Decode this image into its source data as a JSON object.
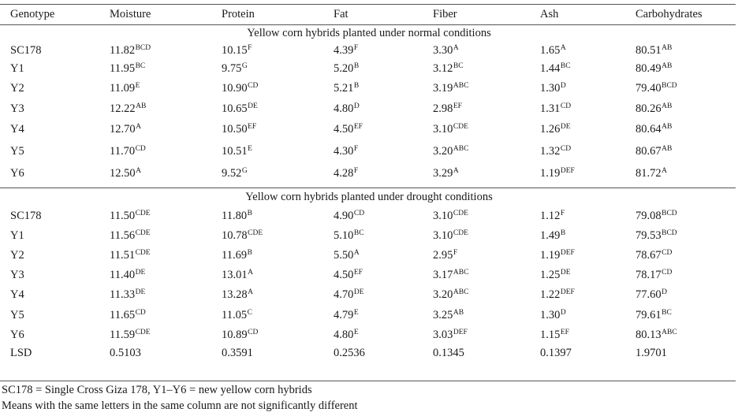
{
  "header": [
    "Genotype",
    "Moisture",
    "Protein",
    "Fat",
    "Fiber",
    "Ash",
    "Carbohydrates"
  ],
  "section1": "Yellow corn hybrids planted under normal conditions",
  "normal_rows": [
    [
      [
        "SC178",
        ""
      ],
      [
        "11.82",
        "BCD"
      ],
      [
        "10.15",
        "F"
      ],
      [
        "4.39",
        "F"
      ],
      [
        "3.30",
        "A"
      ],
      [
        "1.65",
        "A"
      ],
      [
        "80.51",
        "AB"
      ]
    ],
    [
      [
        "Y1",
        ""
      ],
      [
        "11.95",
        "BC"
      ],
      [
        "9.75",
        "G"
      ],
      [
        "5.20",
        "B"
      ],
      [
        "3.12",
        "BC"
      ],
      [
        "1.44",
        "BC"
      ],
      [
        "80.49",
        "AB"
      ]
    ],
    [
      [
        "Y2",
        ""
      ],
      [
        "11.09",
        "E"
      ],
      [
        "10.90",
        "CD"
      ],
      [
        "5.21",
        "B"
      ],
      [
        "3.19",
        "ABC"
      ],
      [
        "1.30",
        "D"
      ],
      [
        "79.40",
        "BCD"
      ]
    ],
    [
      [
        "Y3",
        ""
      ],
      [
        "12.22",
        "AB"
      ],
      [
        "10.65",
        "DE"
      ],
      [
        "4.80",
        "D"
      ],
      [
        "2.98",
        "EF"
      ],
      [
        "1.31",
        "CD"
      ],
      [
        "80.26",
        "AB"
      ]
    ],
    [
      [
        "Y4",
        ""
      ],
      [
        "12.70",
        "A"
      ],
      [
        "10.50",
        "EF"
      ],
      [
        "4.50",
        "EF"
      ],
      [
        "3.10",
        "CDE"
      ],
      [
        "1.26",
        "DE"
      ],
      [
        "80.64",
        "AB"
      ]
    ],
    [
      [
        "Y5",
        ""
      ],
      [
        "11.70",
        "CD"
      ],
      [
        "10.51",
        "E"
      ],
      [
        "4.30",
        "F"
      ],
      [
        "3.20",
        "ABC"
      ],
      [
        "1.32",
        "CD"
      ],
      [
        "80.67",
        "AB"
      ]
    ],
    [
      [
        "Y6",
        ""
      ],
      [
        "12.50",
        "A"
      ],
      [
        "9.52",
        "G"
      ],
      [
        "4.28",
        "F"
      ],
      [
        "3.29",
        "A"
      ],
      [
        "1.19",
        "DEF"
      ],
      [
        "81.72",
        "A"
      ]
    ]
  ],
  "section2": "Yellow corn hybrids planted under drought conditions",
  "drought_rows": [
    [
      [
        "SC178",
        ""
      ],
      [
        "11.50",
        "CDE"
      ],
      [
        "11.80",
        "B"
      ],
      [
        "4.90",
        "CD"
      ],
      [
        "3.10",
        "CDE"
      ],
      [
        "1.12",
        "F"
      ],
      [
        "79.08",
        "BCD"
      ]
    ],
    [
      [
        "Y1",
        ""
      ],
      [
        "11.56",
        "CDE"
      ],
      [
        "10.78",
        "CDE"
      ],
      [
        "5.10",
        "BC"
      ],
      [
        "3.10",
        "CDE"
      ],
      [
        "1.49",
        "B"
      ],
      [
        "79.53",
        "BCD"
      ]
    ],
    [
      [
        "Y2",
        ""
      ],
      [
        "11.51",
        "CDE"
      ],
      [
        "11.69",
        "B"
      ],
      [
        "5.50",
        "A"
      ],
      [
        "2.95",
        "F"
      ],
      [
        "1.19",
        "DEF"
      ],
      [
        "78.67",
        "CD"
      ]
    ],
    [
      [
        "Y3",
        ""
      ],
      [
        "11.40",
        "DE"
      ],
      [
        "13.01",
        "A"
      ],
      [
        "4.50",
        "EF"
      ],
      [
        "3.17",
        "ABC"
      ],
      [
        "1.25",
        "DE"
      ],
      [
        "78.17",
        "CD"
      ]
    ],
    [
      [
        "Y4",
        ""
      ],
      [
        "11.33",
        "DE"
      ],
      [
        "13.28",
        "A"
      ],
      [
        "4.70",
        "DE"
      ],
      [
        "3.20",
        "ABC"
      ],
      [
        "1.22",
        "DEF"
      ],
      [
        "77.60",
        "D"
      ]
    ],
    [
      [
        "Y5",
        ""
      ],
      [
        "11.65",
        "CD"
      ],
      [
        "11.05",
        "C"
      ],
      [
        "4.79",
        "E"
      ],
      [
        "3.25",
        "AB"
      ],
      [
        "1.30",
        "D"
      ],
      [
        "79.61",
        "BC"
      ]
    ],
    [
      [
        "Y6",
        ""
      ],
      [
        "11.59",
        "CDE"
      ],
      [
        "10.89",
        "CD"
      ],
      [
        "4.80",
        "E"
      ],
      [
        "3.03",
        "DEF"
      ],
      [
        "1.15",
        "EF"
      ],
      [
        "80.13",
        "ABC"
      ]
    ],
    [
      [
        "LSD",
        ""
      ],
      [
        "0.5103",
        ""
      ],
      [
        "0.3591",
        ""
      ],
      [
        "0.2536",
        ""
      ],
      [
        "0.1345",
        ""
      ],
      [
        "0.1397",
        ""
      ],
      [
        "1.9701",
        ""
      ]
    ]
  ],
  "footnotes": [
    "SC178 = Single Cross Giza 178, Y1–Y6 = new yellow corn hybrids",
    "Means with the same letters in the same column are not significantly different"
  ]
}
